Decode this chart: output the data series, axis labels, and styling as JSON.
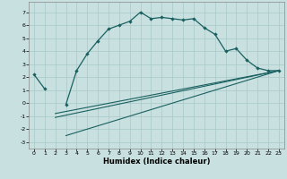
{
  "xlabel": "Humidex (Indice chaleur)",
  "xlim": [
    -0.5,
    23.5
  ],
  "ylim": [
    -3.5,
    7.8
  ],
  "xticks": [
    0,
    1,
    2,
    3,
    4,
    5,
    6,
    7,
    8,
    9,
    10,
    11,
    12,
    13,
    14,
    15,
    16,
    17,
    18,
    19,
    20,
    21,
    22,
    23
  ],
  "yticks": [
    -3,
    -2,
    -1,
    0,
    1,
    2,
    3,
    4,
    5,
    6,
    7
  ],
  "bg_color": "#c8e0e0",
  "line_color": "#1a6060",
  "curve_x": [
    0,
    1,
    2,
    3,
    4,
    5,
    6,
    7,
    8,
    9,
    10,
    11,
    12,
    13,
    14,
    15,
    16,
    17,
    18,
    19,
    20,
    21,
    22,
    23
  ],
  "curve_y": [
    2.2,
    1.1,
    null,
    -0.1,
    2.5,
    3.8,
    4.8,
    5.7,
    6.0,
    6.3,
    7.0,
    6.5,
    6.6,
    6.5,
    6.4,
    6.5,
    5.8,
    5.3,
    4.0,
    4.2,
    3.3,
    2.7,
    2.5,
    2.5
  ],
  "line2_x": [
    2,
    23
  ],
  "line2_y": [
    -0.8,
    2.5
  ],
  "line3_x": [
    3,
    23
  ],
  "line3_y": [
    -2.5,
    2.5
  ],
  "line4_x": [
    2,
    23
  ],
  "line4_y": [
    -1.1,
    2.5
  ]
}
